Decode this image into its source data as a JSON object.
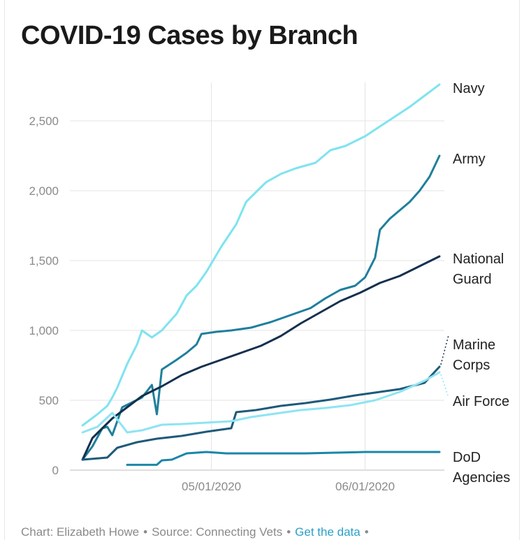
{
  "title": "COVID-19 Cases by Branch",
  "footer": {
    "credit": "Chart: Elizabeth Howe",
    "source": "Source: Connecting Vets",
    "link": "Get the data",
    "separator": "•"
  },
  "chart_data": {
    "type": "line",
    "title": "COVID-19 Cases by Branch",
    "xlabel": "",
    "ylabel": "",
    "ylim": [
      0,
      2750
    ],
    "xlim": [
      "2020-04-04",
      "2020-06-16"
    ],
    "x_ticks": [
      {
        "date": "2020-05-01",
        "label": "05/01/2020"
      },
      {
        "date": "2020-06-01",
        "label": "06/01/2020"
      }
    ],
    "y_ticks": [
      {
        "value": 0,
        "label": "0"
      },
      {
        "value": 500,
        "label": "500"
      },
      {
        "value": 1000,
        "label": "1,000"
      },
      {
        "value": 1500,
        "label": "1,500"
      },
      {
        "value": 2000,
        "label": "2,000"
      },
      {
        "value": 2500,
        "label": "2,500"
      }
    ],
    "grid": true,
    "legend": "direct labels at line ends",
    "series": [
      {
        "name": "Navy",
        "color": "#7fe3f0",
        "points": [
          [
            "2020-04-05",
            320
          ],
          [
            "2020-04-08",
            400
          ],
          [
            "2020-04-10",
            460
          ],
          [
            "2020-04-11",
            520
          ],
          [
            "2020-04-12",
            590
          ],
          [
            "2020-04-14",
            760
          ],
          [
            "2020-04-16",
            900
          ],
          [
            "2020-04-17",
            1000
          ],
          [
            "2020-04-19",
            950
          ],
          [
            "2020-04-21",
            1000
          ],
          [
            "2020-04-24",
            1120
          ],
          [
            "2020-04-26",
            1250
          ],
          [
            "2020-04-28",
            1320
          ],
          [
            "2020-04-30",
            1420
          ],
          [
            "2020-05-03",
            1600
          ],
          [
            "2020-05-06",
            1760
          ],
          [
            "2020-05-08",
            1920
          ],
          [
            "2020-05-12",
            2060
          ],
          [
            "2020-05-15",
            2120
          ],
          [
            "2020-05-18",
            2160
          ],
          [
            "2020-05-22",
            2200
          ],
          [
            "2020-05-25",
            2290
          ],
          [
            "2020-05-28",
            2320
          ],
          [
            "2020-06-01",
            2390
          ],
          [
            "2020-06-04",
            2460
          ],
          [
            "2020-06-07",
            2530
          ],
          [
            "2020-06-10",
            2600
          ],
          [
            "2020-06-13",
            2680
          ],
          [
            "2020-06-16",
            2760
          ]
        ]
      },
      {
        "name": "Army",
        "color": "#1f7f9c",
        "points": [
          [
            "2020-04-05",
            75
          ],
          [
            "2020-04-07",
            170
          ],
          [
            "2020-04-09",
            300
          ],
          [
            "2020-04-10",
            310
          ],
          [
            "2020-04-11",
            250
          ],
          [
            "2020-04-13",
            450
          ],
          [
            "2020-04-17",
            520
          ],
          [
            "2020-04-19",
            610
          ],
          [
            "2020-04-20",
            400
          ],
          [
            "2020-04-21",
            720
          ],
          [
            "2020-04-24",
            790
          ],
          [
            "2020-04-26",
            840
          ],
          [
            "2020-04-28",
            900
          ],
          [
            "2020-04-29",
            975
          ],
          [
            "2020-05-02",
            990
          ],
          [
            "2020-05-05",
            1000
          ],
          [
            "2020-05-09",
            1020
          ],
          [
            "2020-05-13",
            1060
          ],
          [
            "2020-05-17",
            1110
          ],
          [
            "2020-05-21",
            1160
          ],
          [
            "2020-05-24",
            1230
          ],
          [
            "2020-05-27",
            1290
          ],
          [
            "2020-05-30",
            1320
          ],
          [
            "2020-06-01",
            1380
          ],
          [
            "2020-06-03",
            1520
          ],
          [
            "2020-06-04",
            1720
          ],
          [
            "2020-06-06",
            1800
          ],
          [
            "2020-06-08",
            1860
          ],
          [
            "2020-06-10",
            1920
          ],
          [
            "2020-06-12",
            2000
          ],
          [
            "2020-06-14",
            2100
          ],
          [
            "2020-06-16",
            2250
          ]
        ]
      },
      {
        "name": "National Guard",
        "color": "#14304f",
        "points": [
          [
            "2020-04-05",
            75
          ],
          [
            "2020-04-07",
            230
          ],
          [
            "2020-04-09",
            300
          ],
          [
            "2020-04-11",
            370
          ],
          [
            "2020-04-14",
            450
          ],
          [
            "2020-04-17",
            530
          ],
          [
            "2020-04-21",
            600
          ],
          [
            "2020-04-25",
            680
          ],
          [
            "2020-04-29",
            740
          ],
          [
            "2020-05-03",
            790
          ],
          [
            "2020-05-07",
            840
          ],
          [
            "2020-05-11",
            890
          ],
          [
            "2020-05-15",
            960
          ],
          [
            "2020-05-19",
            1050
          ],
          [
            "2020-05-23",
            1130
          ],
          [
            "2020-05-27",
            1210
          ],
          [
            "2020-05-31",
            1270
          ],
          [
            "2020-06-04",
            1340
          ],
          [
            "2020-06-08",
            1390
          ],
          [
            "2020-06-12",
            1460
          ],
          [
            "2020-06-16",
            1530
          ]
        ]
      },
      {
        "name": "Marine Corps",
        "color": "#1e5a7a",
        "points": [
          [
            "2020-04-05",
            75
          ],
          [
            "2020-04-10",
            90
          ],
          [
            "2020-04-12",
            160
          ],
          [
            "2020-04-16",
            200
          ],
          [
            "2020-04-20",
            225
          ],
          [
            "2020-04-25",
            245
          ],
          [
            "2020-04-30",
            275
          ],
          [
            "2020-05-05",
            300
          ],
          [
            "2020-05-06",
            415
          ],
          [
            "2020-05-10",
            430
          ],
          [
            "2020-05-15",
            460
          ],
          [
            "2020-05-20",
            480
          ],
          [
            "2020-05-25",
            505
          ],
          [
            "2020-05-30",
            535
          ],
          [
            "2020-06-03",
            555
          ],
          [
            "2020-06-08",
            580
          ],
          [
            "2020-06-13",
            625
          ],
          [
            "2020-06-16",
            740
          ]
        ]
      },
      {
        "name": "Air Force",
        "color": "#8ee4f2",
        "points": [
          [
            "2020-04-05",
            270
          ],
          [
            "2020-04-08",
            310
          ],
          [
            "2020-04-11",
            410
          ],
          [
            "2020-04-14",
            270
          ],
          [
            "2020-04-17",
            285
          ],
          [
            "2020-04-21",
            325
          ],
          [
            "2020-04-25",
            330
          ],
          [
            "2020-04-30",
            340
          ],
          [
            "2020-05-05",
            350
          ],
          [
            "2020-05-09",
            380
          ],
          [
            "2020-05-14",
            405
          ],
          [
            "2020-05-19",
            430
          ],
          [
            "2020-05-24",
            445
          ],
          [
            "2020-05-29",
            465
          ],
          [
            "2020-06-03",
            500
          ],
          [
            "2020-06-08",
            560
          ],
          [
            "2020-06-13",
            640
          ],
          [
            "2020-06-16",
            700
          ]
        ]
      },
      {
        "name": "DoD Agencies",
        "color": "#1a86a8",
        "points": [
          [
            "2020-04-14",
            38
          ],
          [
            "2020-04-17",
            38
          ],
          [
            "2020-04-20",
            38
          ],
          [
            "2020-04-21",
            70
          ],
          [
            "2020-04-23",
            75
          ],
          [
            "2020-04-26",
            120
          ],
          [
            "2020-04-30",
            130
          ],
          [
            "2020-05-04",
            120
          ],
          [
            "2020-05-10",
            120
          ],
          [
            "2020-05-20",
            120
          ],
          [
            "2020-05-26",
            125
          ],
          [
            "2020-06-01",
            130
          ],
          [
            "2020-06-08",
            130
          ],
          [
            "2020-06-16",
            130
          ]
        ]
      }
    ],
    "end_labels": [
      {
        "series": "Navy",
        "lines": [
          "Navy"
        ]
      },
      {
        "series": "Army",
        "lines": [
          "Army"
        ]
      },
      {
        "series": "National Guard",
        "lines": [
          "National",
          "Guard"
        ]
      },
      {
        "series": "Marine Corps",
        "lines": [
          "Marine",
          "Corps"
        ]
      },
      {
        "series": "Air Force",
        "lines": [
          "Air Force"
        ]
      },
      {
        "series": "DoD Agencies",
        "lines": [
          "DoD",
          "Agencies"
        ]
      }
    ],
    "colors": {
      "grid": "#e3e3e3",
      "axis_text": "#8a8a8a",
      "label_text": "#222222"
    }
  }
}
